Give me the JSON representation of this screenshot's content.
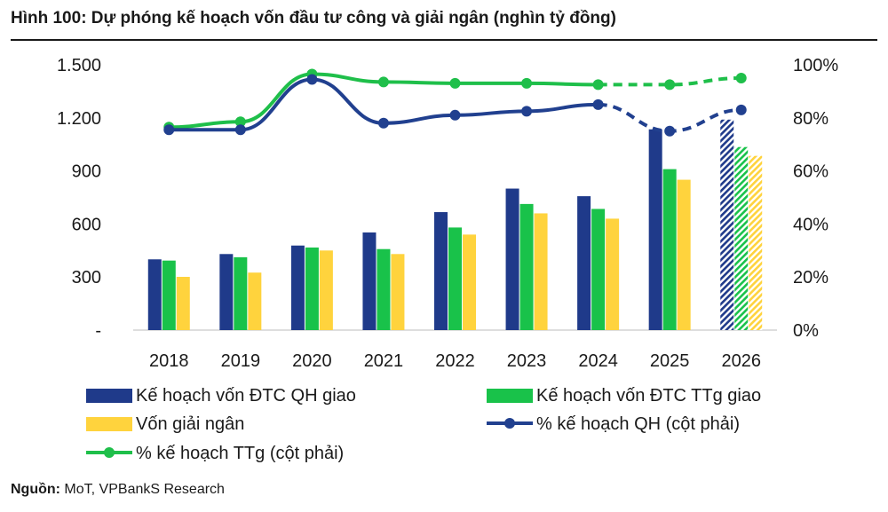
{
  "title": "Hình 100: Dự phóng kế hoạch vốn đầu tư công và giải ngân (nghìn tỷ đồng)",
  "source_label": "Nguồn:",
  "source_text": " MoT, VPBankS Research",
  "colors": {
    "navy": "#1f3a8a",
    "green": "#19c24a",
    "yellow": "#ffd33d",
    "green_line": "#1fbf4a",
    "navy_line": "#21408f"
  },
  "chart_data": {
    "type": "bar",
    "categories": [
      "2018",
      "2019",
      "2020",
      "2021",
      "2022",
      "2023",
      "2024",
      "2025",
      "2026"
    ],
    "forecast_categories": [
      "2026"
    ],
    "y_left": {
      "ylim": [
        0,
        1500
      ],
      "ticks": [
        "-",
        "300",
        "600",
        "900",
        "1.200",
        "1.500"
      ],
      "tick_values": [
        0,
        300,
        600,
        900,
        1200,
        1500
      ]
    },
    "y_right": {
      "ylim": [
        0,
        100
      ],
      "ticks": [
        "0%",
        "20%",
        "40%",
        "60%",
        "80%",
        "100%"
      ],
      "tick_values": [
        0,
        20,
        40,
        60,
        80,
        100
      ]
    },
    "grid": false,
    "legend_position": "bottom",
    "series": [
      {
        "name": "Kế hoạch vốn ĐTC QH giao",
        "type": "bar",
        "axis": "left",
        "color": "#1f3a8a",
        "values": [
          400,
          430,
          478,
          552,
          667,
          800,
          757,
          1135,
          1190
        ]
      },
      {
        "name": "Kế hoạch vốn ĐTC TTg giao",
        "type": "bar",
        "axis": "left",
        "color": "#19c24a",
        "values": [
          393,
          412,
          467,
          458,
          580,
          713,
          685,
          910,
          1035
        ]
      },
      {
        "name": "Vốn giải ngân",
        "type": "bar",
        "axis": "left",
        "color": "#ffd33d",
        "values": [
          301,
          325,
          450,
          430,
          540,
          660,
          630,
          850,
          985
        ]
      },
      {
        "name": "% kế hoạch QH (cột phải)",
        "type": "line",
        "axis": "right",
        "color": "#21408f",
        "values": [
          75.5,
          75.5,
          94.5,
          78,
          81,
          82.5,
          85,
          75,
          83
        ]
      },
      {
        "name": "% kế hoạch TTg (cột phải)",
        "type": "line",
        "axis": "right",
        "color": "#1fbf4a",
        "values": [
          76.5,
          78.5,
          96.5,
          93.5,
          93,
          93,
          92.5,
          92.5,
          95
        ]
      }
    ]
  }
}
